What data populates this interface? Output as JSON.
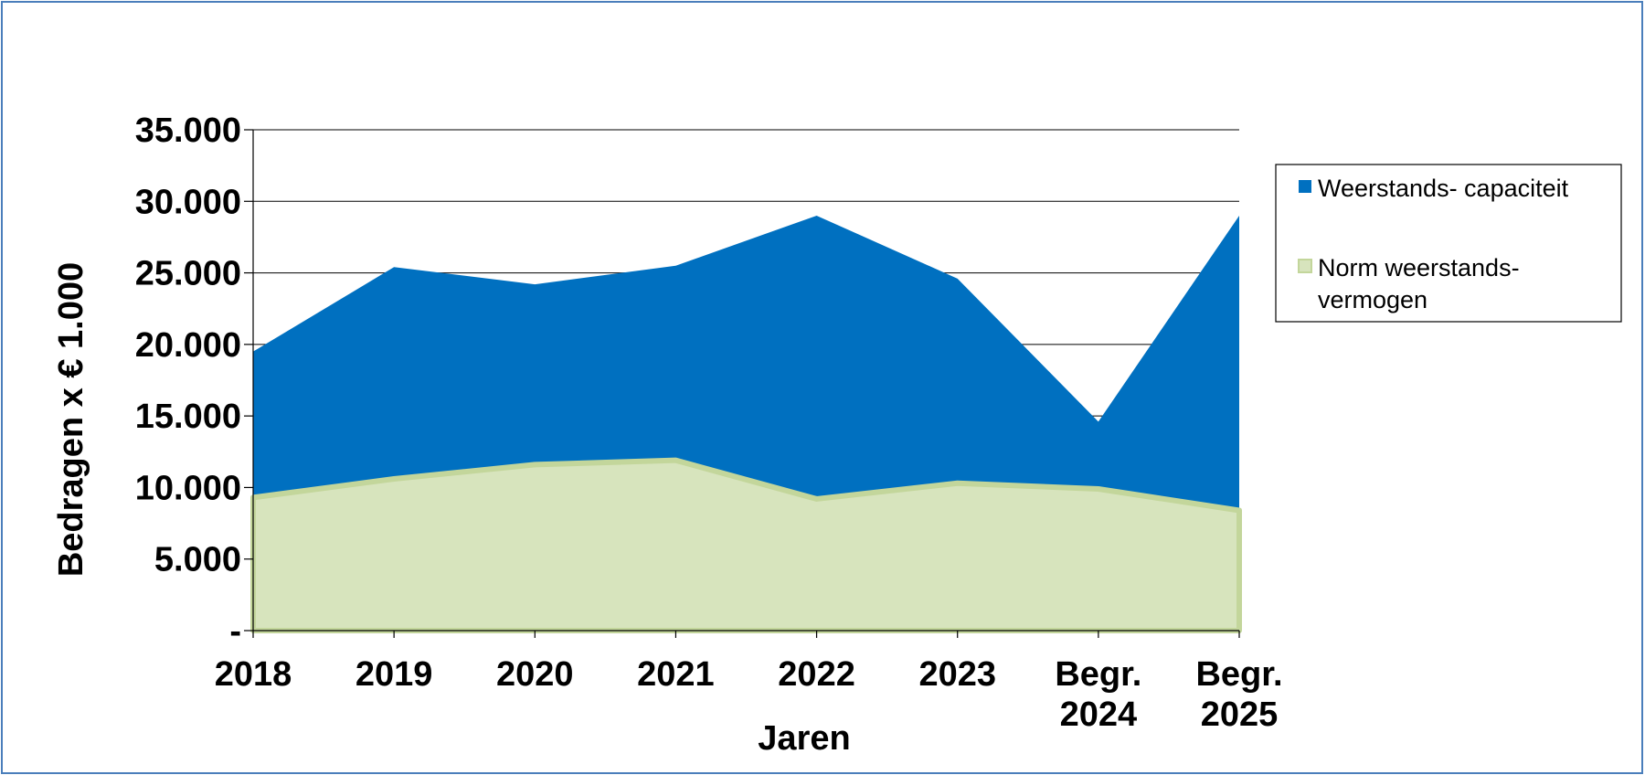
{
  "chart_data": {
    "type": "area",
    "title": "",
    "categories": [
      [
        "2018"
      ],
      [
        "2019"
      ],
      [
        "2020"
      ],
      [
        "2021"
      ],
      [
        "2022"
      ],
      [
        "2023"
      ],
      [
        "Begr.",
        "2024"
      ],
      [
        "Begr.",
        "2025"
      ]
    ],
    "series": [
      {
        "name": "Weerstands- capaciteit",
        "legend_lines": [
          "Weerstands- capaciteit"
        ],
        "color": "#0070c0",
        "values": [
          19500,
          25400,
          24200,
          25500,
          29000,
          24600,
          14600,
          29000
        ]
      },
      {
        "name": "Norm weerstands- vermogen",
        "legend_lines": [
          "Norm weerstands-",
          "vermogen"
        ],
        "color": "#d7e4bd",
        "border_color": "#c3d69b",
        "values": [
          9300,
          10600,
          11600,
          11900,
          9200,
          10300,
          9900,
          8400
        ]
      }
    ],
    "xlabel": "Jaren",
    "ylabel": "Bedragen x € 1.000",
    "ylim": [
      0,
      35000
    ],
    "yticks": [
      0,
      5000,
      10000,
      15000,
      20000,
      25000,
      30000,
      35000
    ],
    "ytick_labels": [
      "-",
      "5.000",
      "10.000",
      "15.000",
      "20.000",
      "25.000",
      "30.000",
      "35.000"
    ],
    "grid": true,
    "legend_position": "right"
  }
}
